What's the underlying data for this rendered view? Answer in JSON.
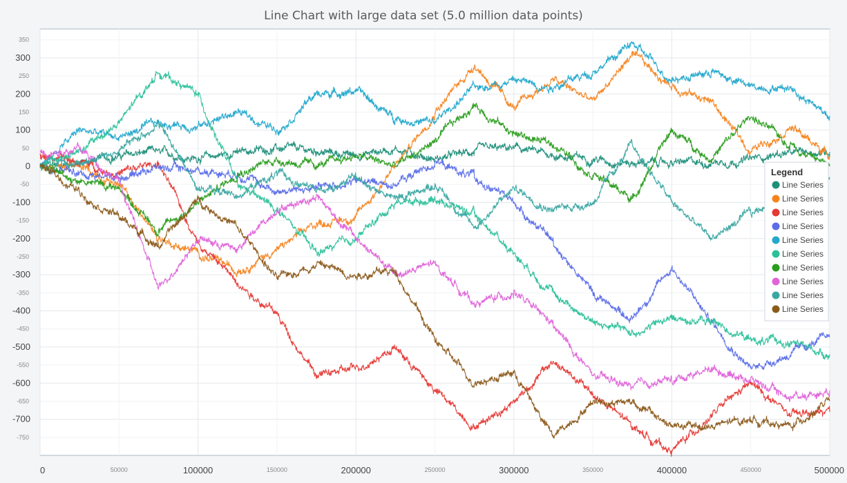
{
  "chart_data": {
    "type": "line",
    "title": "Line Chart with large data set (5.0 million data points)",
    "xlabel": "",
    "ylabel": "",
    "xlim": [
      0,
      500000
    ],
    "ylim": [
      -800,
      380
    ],
    "grid": true,
    "x_ticks_major": [
      "0",
      "100000",
      "200000",
      "300000",
      "400000",
      "500000"
    ],
    "x_ticks_minor": [
      "50000",
      "150000",
      "250000",
      "350000",
      "450000"
    ],
    "y_ticks_major": [
      "300",
      "200",
      "100",
      "0",
      "-100",
      "-200",
      "-300",
      "-400",
      "-500",
      "-600",
      "-700"
    ],
    "y_ticks_minor": [
      "350",
      "250",
      "150",
      "50",
      "-50",
      "-150",
      "-250",
      "-350",
      "-450",
      "-550",
      "-650",
      "-750"
    ],
    "legend": {
      "title": "Legend",
      "position": "right"
    },
    "series": [
      {
        "name": "Line Series",
        "color": "#1f8f7a",
        "x": [
          0,
          25000,
          50000,
          75000,
          100000,
          125000,
          150000,
          175000,
          200000,
          225000,
          250000,
          275000,
          300000,
          325000,
          350000,
          375000,
          400000,
          425000,
          450000,
          475000,
          500000
        ],
        "values": [
          0,
          10,
          30,
          40,
          20,
          40,
          50,
          40,
          30,
          50,
          20,
          40,
          50,
          30,
          20,
          10,
          10,
          10,
          20,
          40,
          40
        ]
      },
      {
        "name": "Line Series",
        "color": "#f5841f",
        "x": [
          0,
          25000,
          50000,
          75000,
          100000,
          125000,
          150000,
          175000,
          200000,
          225000,
          250000,
          275000,
          300000,
          325000,
          350000,
          375000,
          400000,
          425000,
          450000,
          475000,
          500000
        ],
        "values": [
          0,
          0,
          -50,
          -200,
          -240,
          -290,
          -230,
          -160,
          -140,
          0,
          150,
          280,
          160,
          240,
          180,
          310,
          220,
          180,
          40,
          110,
          30
        ]
      },
      {
        "name": "Line Series",
        "color": "#e53935",
        "x": [
          0,
          25000,
          50000,
          75000,
          100000,
          125000,
          150000,
          175000,
          200000,
          225000,
          250000,
          275000,
          300000,
          325000,
          350000,
          375000,
          400000,
          425000,
          450000,
          475000,
          500000
        ],
        "values": [
          30,
          10,
          -20,
          10,
          -210,
          -320,
          -410,
          -580,
          -560,
          -500,
          -620,
          -720,
          -650,
          -540,
          -630,
          -720,
          -790,
          -690,
          -600,
          -690,
          -680
        ]
      },
      {
        "name": "Line Series",
        "color": "#5b6ee8",
        "x": [
          0,
          25000,
          50000,
          75000,
          100000,
          125000,
          150000,
          175000,
          200000,
          225000,
          250000,
          275000,
          300000,
          325000,
          350000,
          375000,
          400000,
          425000,
          450000,
          475000,
          500000
        ],
        "values": [
          0,
          -20,
          -30,
          0,
          -10,
          -20,
          -70,
          -60,
          -40,
          -50,
          10,
          -30,
          -100,
          -210,
          -350,
          -420,
          -280,
          -430,
          -560,
          -520,
          -470
        ]
      },
      {
        "name": "Line Series",
        "color": "#22a8cc",
        "x": [
          0,
          25000,
          50000,
          75000,
          100000,
          125000,
          150000,
          175000,
          200000,
          225000,
          250000,
          275000,
          300000,
          325000,
          350000,
          375000,
          400000,
          425000,
          450000,
          475000,
          500000
        ],
        "values": [
          0,
          100,
          80,
          120,
          110,
          150,
          100,
          200,
          210,
          130,
          120,
          220,
          240,
          220,
          260,
          340,
          240,
          260,
          220,
          220,
          140
        ]
      },
      {
        "name": "Line Series",
        "color": "#2bc09a",
        "x": [
          0,
          25000,
          50000,
          75000,
          100000,
          125000,
          150000,
          175000,
          200000,
          225000,
          250000,
          275000,
          300000,
          325000,
          350000,
          375000,
          400000,
          425000,
          450000,
          475000,
          500000
        ],
        "values": [
          0,
          40,
          120,
          260,
          200,
          -50,
          -120,
          -240,
          -200,
          -100,
          -90,
          -130,
          -240,
          -350,
          -430,
          -460,
          -420,
          -430,
          -480,
          -490,
          -520
        ]
      },
      {
        "name": "Line Series",
        "color": "#2a9d1e",
        "x": [
          0,
          25000,
          50000,
          75000,
          100000,
          125000,
          150000,
          175000,
          200000,
          225000,
          250000,
          275000,
          300000,
          325000,
          350000,
          375000,
          400000,
          425000,
          450000,
          475000,
          500000
        ],
        "values": [
          0,
          -40,
          -60,
          -180,
          -100,
          -20,
          20,
          0,
          30,
          0,
          70,
          170,
          90,
          60,
          -20,
          -90,
          100,
          20,
          140,
          60,
          0
        ]
      },
      {
        "name": "Line Series",
        "color": "#df63d9",
        "x": [
          0,
          25000,
          50000,
          75000,
          100000,
          125000,
          150000,
          175000,
          200000,
          225000,
          250000,
          275000,
          300000,
          325000,
          350000,
          375000,
          400000,
          425000,
          450000,
          475000,
          500000
        ],
        "values": [
          40,
          50,
          -40,
          -340,
          -200,
          -230,
          -120,
          -80,
          -200,
          -300,
          -270,
          -380,
          -350,
          -440,
          -580,
          -610,
          -590,
          -560,
          -590,
          -640,
          -620
        ]
      },
      {
        "name": "Line Series",
        "color": "#3aa7a2",
        "x": [
          0,
          25000,
          50000,
          75000,
          100000,
          125000,
          150000,
          175000,
          200000,
          225000,
          250000,
          275000,
          300000,
          325000,
          350000,
          375000,
          400000,
          425000,
          450000,
          475000,
          500000
        ],
        "values": [
          0,
          10,
          40,
          120,
          -60,
          -80,
          -20,
          -70,
          -30,
          -90,
          -50,
          -170,
          -60,
          -120,
          -100,
          60,
          -100,
          -200,
          -130,
          -80,
          -30
        ]
      },
      {
        "name": "Line Series",
        "color": "#8b5a1a",
        "x": [
          0,
          25000,
          50000,
          75000,
          100000,
          125000,
          150000,
          175000,
          200000,
          225000,
          250000,
          275000,
          300000,
          325000,
          350000,
          375000,
          400000,
          425000,
          450000,
          475000,
          500000
        ],
        "values": [
          0,
          -70,
          -140,
          -220,
          -90,
          -170,
          -310,
          -270,
          -300,
          -290,
          -480,
          -600,
          -570,
          -750,
          -650,
          -650,
          -720,
          -720,
          -700,
          -720,
          -650
        ]
      }
    ]
  }
}
